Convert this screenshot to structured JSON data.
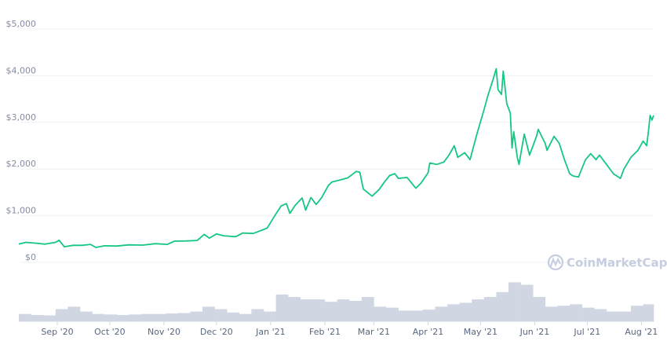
{
  "chart_data": {
    "type": "line",
    "title": "",
    "xlabel": "",
    "ylabel": "",
    "ylim": [
      0,
      5000
    ],
    "xlim": [
      "2020-08-10",
      "2021-08-08"
    ],
    "grid": true,
    "legend": "none",
    "line_color": "#16c784",
    "volume_color": "#d1d6e3",
    "grid_color": "#eef0f3",
    "watermark": "CoinMarketCap",
    "y_ticks": [
      {
        "value": 0,
        "label": "$0"
      },
      {
        "value": 1000,
        "label": "$1,000"
      },
      {
        "value": 2000,
        "label": "$2,000"
      },
      {
        "value": 3000,
        "label": "$3,000"
      },
      {
        "value": 4000,
        "label": "$4,000"
      },
      {
        "value": 5000,
        "label": "$5,000"
      }
    ],
    "x_ticks": [
      {
        "date": "2020-09-01",
        "label": "Sep '20"
      },
      {
        "date": "2020-10-01",
        "label": "Oct '20"
      },
      {
        "date": "2020-11-01",
        "label": "Nov '20"
      },
      {
        "date": "2020-12-01",
        "label": "Dec '20"
      },
      {
        "date": "2021-01-01",
        "label": "Jan '21"
      },
      {
        "date": "2021-02-01",
        "label": "Feb '21"
      },
      {
        "date": "2021-03-01",
        "label": "Mar '21"
      },
      {
        "date": "2021-04-01",
        "label": "Apr '21"
      },
      {
        "date": "2021-05-01",
        "label": "May '21"
      },
      {
        "date": "2021-06-01",
        "label": "Jun '21"
      },
      {
        "date": "2021-07-01",
        "label": "Jul '21"
      },
      {
        "date": "2021-08-01",
        "label": "Aug '21"
      }
    ],
    "series": [
      {
        "points": [
          [
            "2020-08-10",
            390
          ],
          [
            "2020-08-14",
            430
          ],
          [
            "2020-08-20",
            410
          ],
          [
            "2020-08-25",
            390
          ],
          [
            "2020-08-31",
            430
          ],
          [
            "2020-09-02",
            475
          ],
          [
            "2020-09-05",
            335
          ],
          [
            "2020-09-10",
            365
          ],
          [
            "2020-09-15",
            365
          ],
          [
            "2020-09-20",
            385
          ],
          [
            "2020-09-23",
            320
          ],
          [
            "2020-09-28",
            355
          ],
          [
            "2020-10-05",
            350
          ],
          [
            "2020-10-12",
            375
          ],
          [
            "2020-10-20",
            370
          ],
          [
            "2020-10-27",
            400
          ],
          [
            "2020-11-03",
            385
          ],
          [
            "2020-11-07",
            455
          ],
          [
            "2020-11-14",
            460
          ],
          [
            "2020-11-20",
            470
          ],
          [
            "2020-11-24",
            600
          ],
          [
            "2020-11-27",
            520
          ],
          [
            "2020-12-01",
            610
          ],
          [
            "2020-12-05",
            570
          ],
          [
            "2020-12-12",
            550
          ],
          [
            "2020-12-16",
            630
          ],
          [
            "2020-12-22",
            620
          ],
          [
            "2020-12-27",
            690
          ],
          [
            "2020-12-30",
            735
          ],
          [
            "2021-01-03",
            980
          ],
          [
            "2021-01-07",
            1210
          ],
          [
            "2021-01-10",
            1260
          ],
          [
            "2021-01-12",
            1050
          ],
          [
            "2021-01-15",
            1220
          ],
          [
            "2021-01-19",
            1380
          ],
          [
            "2021-01-21",
            1120
          ],
          [
            "2021-01-24",
            1390
          ],
          [
            "2021-01-27",
            1240
          ],
          [
            "2021-01-30",
            1380
          ],
          [
            "2021-02-03",
            1650
          ],
          [
            "2021-02-05",
            1720
          ],
          [
            "2021-02-10",
            1770
          ],
          [
            "2021-02-14",
            1810
          ],
          [
            "2021-02-19",
            1950
          ],
          [
            "2021-02-21",
            1930
          ],
          [
            "2021-02-23",
            1570
          ],
          [
            "2021-02-28",
            1420
          ],
          [
            "2021-03-04",
            1560
          ],
          [
            "2021-03-07",
            1720
          ],
          [
            "2021-03-10",
            1860
          ],
          [
            "2021-03-13",
            1900
          ],
          [
            "2021-03-15",
            1800
          ],
          [
            "2021-03-20",
            1820
          ],
          [
            "2021-03-25",
            1590
          ],
          [
            "2021-03-28",
            1700
          ],
          [
            "2021-04-01",
            1920
          ],
          [
            "2021-04-02",
            2130
          ],
          [
            "2021-04-06",
            2100
          ],
          [
            "2021-04-10",
            2150
          ],
          [
            "2021-04-13",
            2300
          ],
          [
            "2021-04-16",
            2500
          ],
          [
            "2021-04-18",
            2250
          ],
          [
            "2021-04-22",
            2350
          ],
          [
            "2021-04-25",
            2200
          ],
          [
            "2021-04-29",
            2760
          ],
          [
            "2021-05-03",
            3270
          ],
          [
            "2021-05-05",
            3550
          ],
          [
            "2021-05-08",
            3900
          ],
          [
            "2021-05-10",
            4150
          ],
          [
            "2021-05-11",
            3700
          ],
          [
            "2021-05-13",
            3600
          ],
          [
            "2021-05-14",
            4100
          ],
          [
            "2021-05-16",
            3400
          ],
          [
            "2021-05-18",
            3200
          ],
          [
            "2021-05-19",
            2450
          ],
          [
            "2021-05-20",
            2800
          ],
          [
            "2021-05-22",
            2250
          ],
          [
            "2021-05-23",
            2100
          ],
          [
            "2021-05-26",
            2750
          ],
          [
            "2021-05-29",
            2300
          ],
          [
            "2021-06-02",
            2700
          ],
          [
            "2021-06-03",
            2850
          ],
          [
            "2021-06-07",
            2550
          ],
          [
            "2021-06-08",
            2400
          ],
          [
            "2021-06-12",
            2700
          ],
          [
            "2021-06-15",
            2550
          ],
          [
            "2021-06-18",
            2200
          ],
          [
            "2021-06-21",
            1900
          ],
          [
            "2021-06-23",
            1850
          ],
          [
            "2021-06-26",
            1830
          ],
          [
            "2021-06-30",
            2200
          ],
          [
            "2021-07-03",
            2330
          ],
          [
            "2021-07-06",
            2200
          ],
          [
            "2021-07-08",
            2300
          ],
          [
            "2021-07-13",
            2050
          ],
          [
            "2021-07-16",
            1900
          ],
          [
            "2021-07-20",
            1800
          ],
          [
            "2021-07-22",
            2000
          ],
          [
            "2021-07-26",
            2250
          ],
          [
            "2021-07-30",
            2400
          ],
          [
            "2021-08-02",
            2600
          ],
          [
            "2021-08-04",
            2500
          ],
          [
            "2021-08-05",
            2800
          ],
          [
            "2021-08-06",
            3150
          ],
          [
            "2021-08-07",
            3050
          ],
          [
            "2021-08-08",
            3150
          ]
        ]
      }
    ],
    "volume_relative": {
      "start_dates_weekly": [
        "2020-08-10",
        "2020-08-17",
        "2020-08-24",
        "2020-08-31",
        "2020-09-07",
        "2020-09-14",
        "2020-09-21",
        "2020-09-28",
        "2020-10-05",
        "2020-10-12",
        "2020-10-19",
        "2020-10-26",
        "2020-11-02",
        "2020-11-09",
        "2020-11-16",
        "2020-11-23",
        "2020-11-30",
        "2020-12-07",
        "2020-12-14",
        "2020-12-21",
        "2020-12-28",
        "2021-01-04",
        "2021-01-11",
        "2021-01-18",
        "2021-01-25",
        "2021-02-01",
        "2021-02-08",
        "2021-02-15",
        "2021-02-22",
        "2021-03-01",
        "2021-03-08",
        "2021-03-15",
        "2021-03-22",
        "2021-03-29",
        "2021-04-05",
        "2021-04-12",
        "2021-04-19",
        "2021-04-26",
        "2021-05-03",
        "2021-05-10",
        "2021-05-17",
        "2021-05-24",
        "2021-05-31",
        "2021-06-07",
        "2021-06-14",
        "2021-06-21",
        "2021-06-28",
        "2021-07-05",
        "2021-07-12",
        "2021-07-19",
        "2021-07-26",
        "2021-08-02"
      ],
      "values": [
        0.15,
        0.13,
        0.12,
        0.25,
        0.3,
        0.2,
        0.15,
        0.14,
        0.13,
        0.14,
        0.15,
        0.15,
        0.16,
        0.17,
        0.2,
        0.3,
        0.25,
        0.18,
        0.15,
        0.25,
        0.2,
        0.55,
        0.5,
        0.45,
        0.45,
        0.4,
        0.45,
        0.42,
        0.5,
        0.3,
        0.28,
        0.22,
        0.22,
        0.24,
        0.3,
        0.35,
        0.38,
        0.45,
        0.5,
        0.6,
        0.8,
        0.75,
        0.5,
        0.3,
        0.32,
        0.35,
        0.28,
        0.25,
        0.2,
        0.2,
        0.32,
        0.35
      ]
    }
  }
}
